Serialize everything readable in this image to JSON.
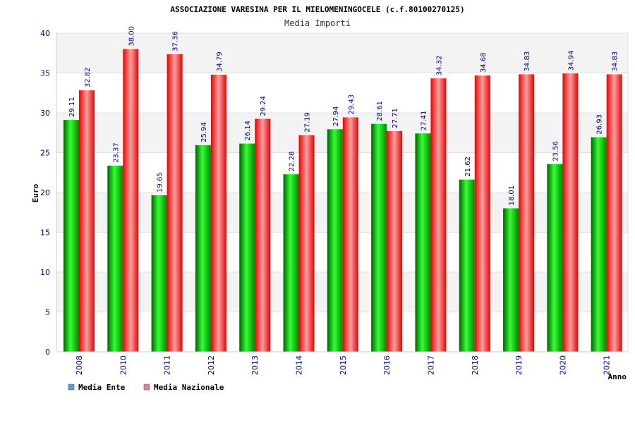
{
  "chart_data": {
    "type": "bar",
    "title": "ASSOCIAZIONE VARESINA PER IL MIELOMENINGOCELE (c.f.80100270125)",
    "subtitle": "Media Importi",
    "xlabel": "Anno",
    "ylabel": "Euro",
    "ylim": [
      0,
      40
    ],
    "yticks": [
      "0",
      "5",
      "10",
      "15",
      "20",
      "25",
      "30",
      "35",
      "40"
    ],
    "categories": [
      "2008",
      "2010",
      "2011",
      "2012",
      "2013",
      "2014",
      "2015",
      "2016",
      "2017",
      "2018",
      "2019",
      "2020",
      "2021"
    ],
    "series": [
      {
        "name": "Media Ente",
        "color": "#00cc00",
        "values": [
          29.11,
          23.37,
          19.65,
          25.94,
          26.14,
          22.28,
          27.94,
          28.61,
          27.41,
          21.62,
          18.01,
          23.56,
          26.93
        ],
        "labels": [
          "29.11",
          "23.37",
          "19.65",
          "25.94",
          "26.14",
          "22.28",
          "27.94",
          "28.61",
          "27.41",
          "21.62",
          "18.01",
          "23.56",
          "26.93"
        ]
      },
      {
        "name": "Media Nazionale",
        "color": "#ff0000",
        "values": [
          32.82,
          38.0,
          37.36,
          34.79,
          29.24,
          27.19,
          29.43,
          27.71,
          34.32,
          34.68,
          34.83,
          34.94,
          34.83
        ],
        "labels": [
          "32.82",
          "38.00",
          "37.36",
          "34.79",
          "29.24",
          "27.19",
          "29.43",
          "27.71",
          "34.32",
          "34.68",
          "34.83",
          "34.94",
          "34.83"
        ]
      }
    ],
    "legend": {
      "position": "bottom-left",
      "swatch_colors": [
        "#5b9bd5",
        "#e07bb0"
      ]
    },
    "grid": true,
    "band_colors": [
      "#f3f3f3",
      "#ffffff"
    ]
  }
}
